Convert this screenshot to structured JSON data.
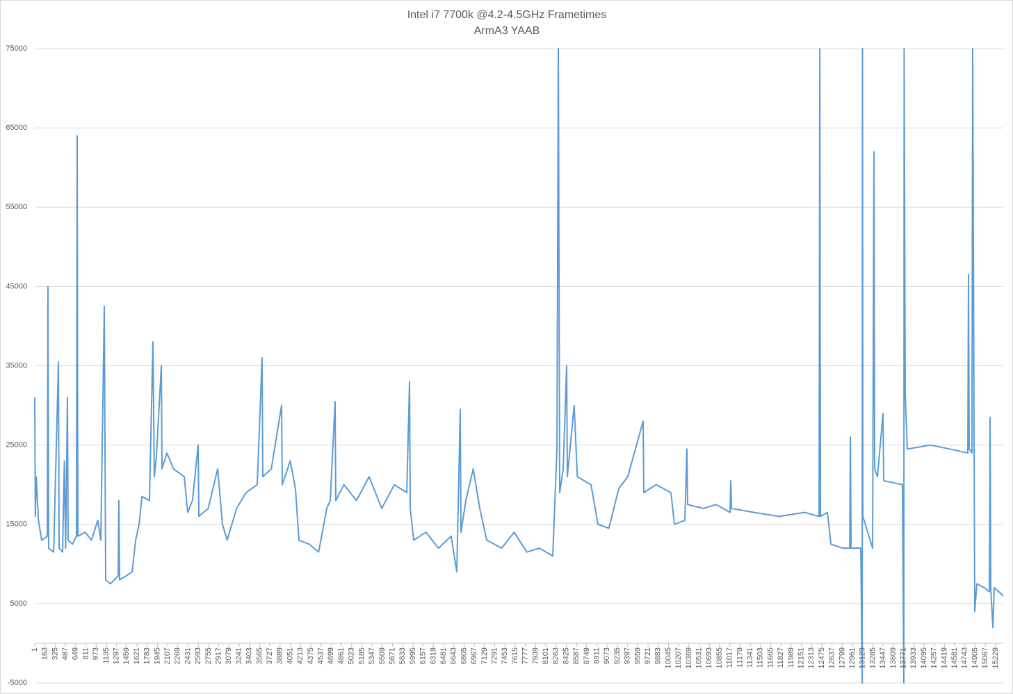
{
  "chart_data": {
    "type": "line",
    "title": "Intel i7 7700k @4.2-4.5GHz Frametimes",
    "subtitle": "ArmA3 YAAB",
    "x": [
      1,
      10,
      23,
      60,
      111,
      200,
      210,
      221,
      300,
      376,
      387,
      442,
      470,
      490,
      519,
      530,
      600,
      662,
      673,
      684,
      800,
      900,
      1000,
      1048,
      1103,
      1125,
      1200,
      1323,
      1334,
      1345,
      1450,
      1544,
      1600,
      1654,
      1700,
      1819,
      1874,
      1896,
      1929,
      2007,
      2018,
      2095,
      2200,
      2370,
      2425,
      2500,
      2591,
      2602,
      2750,
      2900,
      2976,
      3050,
      3200,
      3350,
      3527,
      3604,
      3615,
      3750,
      3913,
      3924,
      4050,
      4133,
      4188,
      4350,
      4500,
      4629,
      4684,
      4761,
      4772,
      4900,
      5100,
      5300,
      5500,
      5700,
      5897,
      5941,
      5952,
      6007,
      6200,
      6400,
      6600,
      6690,
      6745,
      6756,
      6833,
      6950,
      7054,
      7164,
      7400,
      7600,
      7800,
      8000,
      8211,
      8277,
      8299,
      8321,
      8376,
      8431,
      8442,
      8550,
      8600,
      8817,
      8927,
      9100,
      9257,
      9400,
      9643,
      9654,
      9850,
      10084,
      10139,
      10304,
      10337,
      10348,
      10600,
      10800,
      11021,
      11032,
      11043,
      11400,
      11800,
      12200,
      12432,
      12443,
      12454,
      12564,
      12619,
      12800,
      12917,
      12928,
      12939,
      13093,
      13115,
      13120,
      13126,
      13280,
      13302,
      13313,
      13357,
      13445,
      13456,
      13753,
      13775,
      13780,
      13797,
      13830,
      14200,
      14500,
      14789,
      14800,
      14811,
      14855,
      14866,
      14899,
      14932,
      15050,
      15131,
      15142,
      15153,
      15186,
      15208,
      15351
    ],
    "series": [
      {
        "name": "Frametimes",
        "color": "#5b9bd5",
        "values": [
          31000,
          16000,
          21000,
          15500,
          13000,
          13500,
          45000,
          12000,
          11500,
          35500,
          12000,
          11500,
          23000,
          12000,
          31000,
          13000,
          12500,
          13500,
          64000,
          13500,
          14000,
          13000,
          15500,
          13000,
          42500,
          8000,
          7500,
          8500,
          18000,
          8000,
          8500,
          9000,
          13000,
          15000,
          18500,
          18000,
          38000,
          21000,
          23500,
          35000,
          22000,
          24000,
          22000,
          21000,
          16500,
          18000,
          25000,
          16000,
          17000,
          22000,
          15000,
          13000,
          17000,
          19000,
          20000,
          36000,
          21000,
          22000,
          30000,
          20000,
          23000,
          19500,
          13000,
          12500,
          11500,
          17000,
          18000,
          30500,
          18000,
          20000,
          18000,
          21000,
          17000,
          20000,
          19000,
          33000,
          17000,
          13000,
          14000,
          12000,
          13500,
          9000,
          29500,
          14000,
          18000,
          22000,
          17000,
          13000,
          12000,
          14000,
          11500,
          12000,
          11000,
          24500,
          75000,
          19000,
          22000,
          35000,
          21000,
          30000,
          21000,
          20000,
          15000,
          14500,
          19500,
          21000,
          28000,
          19000,
          20000,
          19000,
          15000,
          15500,
          24500,
          17500,
          17000,
          17500,
          16500,
          20500,
          17000,
          16500,
          16000,
          16500,
          16000,
          75000,
          16000,
          16500,
          12500,
          12000,
          12000,
          26000,
          12000,
          12000,
          -5000,
          75000,
          16000,
          12000,
          62000,
          22000,
          21000,
          29000,
          20500,
          20000,
          -5000,
          75000,
          31500,
          24500,
          25000,
          24500,
          24000,
          46500,
          24500,
          24000,
          75000,
          4000,
          7500,
          7000,
          6500,
          28500,
          7000,
          2000,
          7000,
          6000
        ]
      }
    ],
    "xlim": [
      1,
      15351
    ],
    "xticks": [
      1,
      163,
      325,
      487,
      649,
      811,
      973,
      1135,
      1297,
      1459,
      1621,
      1783,
      1945,
      2107,
      2269,
      2431,
      2593,
      2755,
      2917,
      3079,
      3241,
      3403,
      3565,
      3727,
      3889,
      4051,
      4213,
      4375,
      4537,
      4699,
      4861,
      5023,
      5185,
      5347,
      5509,
      5671,
      5833,
      5995,
      6157,
      6319,
      6481,
      6643,
      6805,
      6967,
      7129,
      7291,
      7453,
      7615,
      7777,
      7939,
      8101,
      8263,
      8425,
      8587,
      8749,
      8911,
      9073,
      9235,
      9397,
      9559,
      9721,
      9883,
      10045,
      10207,
      10369,
      10531,
      10693,
      10855,
      11017,
      11179,
      11341,
      11503,
      11665,
      11827,
      11989,
      12151,
      12313,
      12475,
      12637,
      12799,
      12961,
      13123,
      13285,
      13447,
      13609,
      13771,
      13933,
      14095,
      14257,
      14419,
      14581,
      14743,
      14905,
      15067,
      15229
    ],
    "ylim": [
      -5000,
      75000
    ],
    "yticks": [
      -5000,
      5000,
      15000,
      25000,
      35000,
      45000,
      55000,
      65000,
      75000
    ],
    "grid": true
  }
}
